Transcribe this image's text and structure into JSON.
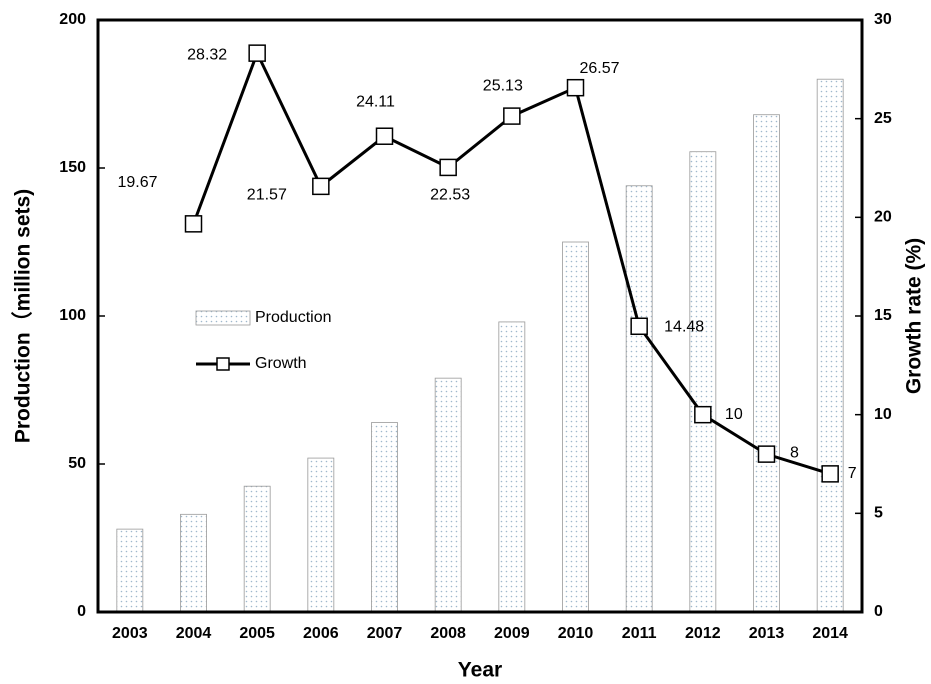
{
  "chart_data": {
    "type": "combo",
    "x_label": "Year",
    "y_label": "Production（million sets)",
    "y2_label": "Growth rate (%)",
    "categories": [
      "2003",
      "2004",
      "2005",
      "2006",
      "2007",
      "2008",
      "2009",
      "2010",
      "2011",
      "2012",
      "2013",
      "2014"
    ],
    "series": [
      {
        "name": "Production",
        "type": "bar",
        "color": "#9fb8cc",
        "values": [
          28,
          33,
          42.5,
          52,
          64,
          79,
          98,
          125,
          144,
          155.5,
          168,
          180
        ]
      },
      {
        "name": "Growth",
        "type": "line",
        "axis": "y2",
        "color": "#000000",
        "values": [
          null,
          19.67,
          28.32,
          21.57,
          24.11,
          22.53,
          25.13,
          26.57,
          14.48,
          10,
          8,
          7
        ]
      }
    ],
    "ylim": [
      0,
      200
    ],
    "yticks": [
      0,
      50,
      100,
      150,
      200
    ],
    "y2lim": [
      0,
      30
    ],
    "y2ticks": [
      0,
      5,
      10,
      15,
      20,
      25,
      30
    ],
    "grid": false
  }
}
